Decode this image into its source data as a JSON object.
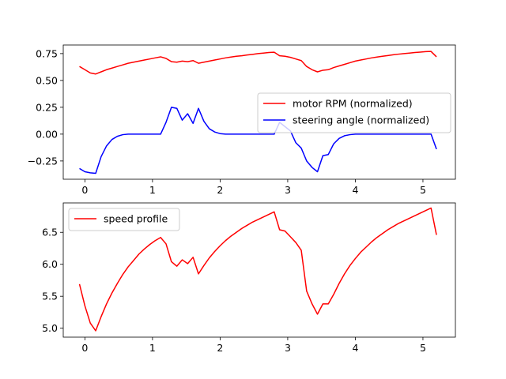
{
  "chart_data": [
    {
      "type": "line",
      "title": "",
      "xlabel": "",
      "ylabel": "",
      "xlim": [
        -0.32,
        5.48
      ],
      "ylim": [
        -0.42,
        0.83
      ],
      "xticks": [
        0,
        1,
        2,
        3,
        4,
        5
      ],
      "yticks": [
        -0.25,
        0.0,
        0.25,
        0.5,
        0.75
      ],
      "ytick_labels": [
        "−0.25",
        "0.00",
        "0.25",
        "0.50",
        "0.75"
      ],
      "grid": false,
      "legend_position": "center-right",
      "series": [
        {
          "name": "motor RPM (normalized)",
          "color": "#ff0000",
          "x": [
            -0.08,
            0.0,
            0.08,
            0.16,
            0.24,
            0.32,
            0.4,
            0.48,
            0.56,
            0.64,
            0.72,
            0.8,
            0.88,
            0.96,
            1.04,
            1.12,
            1.2,
            1.28,
            1.36,
            1.44,
            1.52,
            1.6,
            1.68,
            1.76,
            1.84,
            1.92,
            2.0,
            2.08,
            2.16,
            2.24,
            2.32,
            2.4,
            2.48,
            2.56,
            2.64,
            2.72,
            2.8,
            2.88,
            2.96,
            3.04,
            3.12,
            3.2,
            3.28,
            3.36,
            3.44,
            3.52,
            3.6,
            3.68,
            3.76,
            3.84,
            3.92,
            4.0,
            4.08,
            4.16,
            4.24,
            4.32,
            4.4,
            4.48,
            4.56,
            4.64,
            4.72,
            4.8,
            4.88,
            4.96,
            5.04,
            5.12,
            5.2
          ],
          "y": [
            0.63,
            0.6,
            0.57,
            0.56,
            0.58,
            0.6,
            0.615,
            0.63,
            0.645,
            0.66,
            0.67,
            0.68,
            0.69,
            0.7,
            0.71,
            0.72,
            0.705,
            0.675,
            0.67,
            0.68,
            0.675,
            0.685,
            0.66,
            0.67,
            0.68,
            0.69,
            0.7,
            0.71,
            0.718,
            0.725,
            0.73,
            0.737,
            0.743,
            0.75,
            0.755,
            0.76,
            0.763,
            0.73,
            0.725,
            0.715,
            0.7,
            0.685,
            0.63,
            0.6,
            0.58,
            0.595,
            0.6,
            0.62,
            0.635,
            0.65,
            0.665,
            0.68,
            0.69,
            0.7,
            0.71,
            0.718,
            0.725,
            0.732,
            0.739,
            0.745,
            0.75,
            0.755,
            0.76,
            0.764,
            0.768,
            0.77,
            0.72
          ]
        },
        {
          "name": "steering angle (normalized)",
          "color": "#0000ff",
          "x": [
            -0.08,
            0.0,
            0.08,
            0.16,
            0.24,
            0.32,
            0.4,
            0.48,
            0.56,
            0.64,
            0.72,
            0.8,
            0.88,
            0.96,
            1.04,
            1.12,
            1.2,
            1.28,
            1.36,
            1.44,
            1.52,
            1.6,
            1.68,
            1.76,
            1.84,
            1.92,
            2.0,
            2.08,
            2.16,
            2.24,
            2.32,
            2.4,
            2.48,
            2.56,
            2.64,
            2.72,
            2.8,
            2.88,
            2.96,
            3.04,
            3.12,
            3.2,
            3.28,
            3.36,
            3.44,
            3.52,
            3.6,
            3.68,
            3.76,
            3.84,
            3.92,
            4.0,
            4.08,
            4.16,
            4.24,
            4.32,
            4.4,
            4.48,
            4.56,
            4.64,
            4.72,
            4.8,
            4.88,
            4.96,
            5.04,
            5.12,
            5.2
          ],
          "y": [
            -0.32,
            -0.35,
            -0.36,
            -0.365,
            -0.21,
            -0.11,
            -0.05,
            -0.02,
            -0.005,
            0.0,
            0.0,
            0.0,
            0.0,
            0.0,
            0.0,
            0.0,
            0.11,
            0.25,
            0.24,
            0.13,
            0.19,
            0.1,
            0.24,
            0.12,
            0.05,
            0.02,
            0.005,
            0.0,
            0.0,
            0.0,
            0.0,
            0.0,
            0.0,
            0.0,
            0.0,
            0.0,
            0.0,
            0.11,
            0.07,
            0.03,
            -0.08,
            -0.13,
            -0.25,
            -0.31,
            -0.35,
            -0.2,
            -0.19,
            -0.09,
            -0.04,
            -0.015,
            -0.005,
            0.0,
            0.0,
            0.0,
            0.0,
            0.0,
            0.0,
            0.0,
            0.0,
            0.0,
            0.0,
            0.0,
            0.0,
            0.0,
            0.0,
            0.0,
            -0.14
          ]
        }
      ]
    },
    {
      "type": "line",
      "title": "",
      "xlabel": "",
      "ylabel": "",
      "xlim": [
        -0.32,
        5.48
      ],
      "ylim": [
        4.86,
        6.96
      ],
      "xticks": [
        0,
        1,
        2,
        3,
        4,
        5
      ],
      "yticks": [
        5.0,
        5.5,
        6.0,
        6.5
      ],
      "ytick_labels": [
        "5.0",
        "5.5",
        "6.0",
        "6.5"
      ],
      "grid": false,
      "legend_position": "upper-left",
      "series": [
        {
          "name": "speed profile",
          "color": "#ff0000",
          "x": [
            -0.08,
            0.0,
            0.08,
            0.16,
            0.24,
            0.32,
            0.4,
            0.48,
            0.56,
            0.64,
            0.72,
            0.8,
            0.88,
            0.96,
            1.04,
            1.12,
            1.2,
            1.28,
            1.36,
            1.44,
            1.52,
            1.6,
            1.68,
            1.76,
            1.84,
            1.92,
            2.0,
            2.08,
            2.16,
            2.24,
            2.32,
            2.4,
            2.48,
            2.56,
            2.64,
            2.72,
            2.8,
            2.88,
            2.96,
            3.04,
            3.12,
            3.2,
            3.28,
            3.36,
            3.44,
            3.52,
            3.6,
            3.68,
            3.76,
            3.84,
            3.92,
            4.0,
            4.08,
            4.16,
            4.24,
            4.32,
            4.4,
            4.48,
            4.56,
            4.64,
            4.72,
            4.8,
            4.88,
            4.96,
            5.04,
            5.12,
            5.2
          ],
          "y": [
            5.69,
            5.35,
            5.08,
            4.96,
            5.18,
            5.38,
            5.55,
            5.7,
            5.84,
            5.96,
            6.06,
            6.16,
            6.24,
            6.31,
            6.37,
            6.42,
            6.32,
            6.04,
            5.97,
            6.07,
            6.01,
            6.11,
            5.85,
            5.98,
            6.1,
            6.2,
            6.29,
            6.37,
            6.44,
            6.5,
            6.56,
            6.61,
            6.66,
            6.7,
            6.74,
            6.78,
            6.82,
            6.54,
            6.52,
            6.43,
            6.34,
            6.22,
            5.58,
            5.38,
            5.22,
            5.38,
            5.38,
            5.53,
            5.7,
            5.85,
            5.98,
            6.09,
            6.19,
            6.27,
            6.35,
            6.42,
            6.48,
            6.54,
            6.59,
            6.64,
            6.68,
            6.72,
            6.76,
            6.8,
            6.84,
            6.88,
            6.46
          ]
        }
      ]
    }
  ]
}
